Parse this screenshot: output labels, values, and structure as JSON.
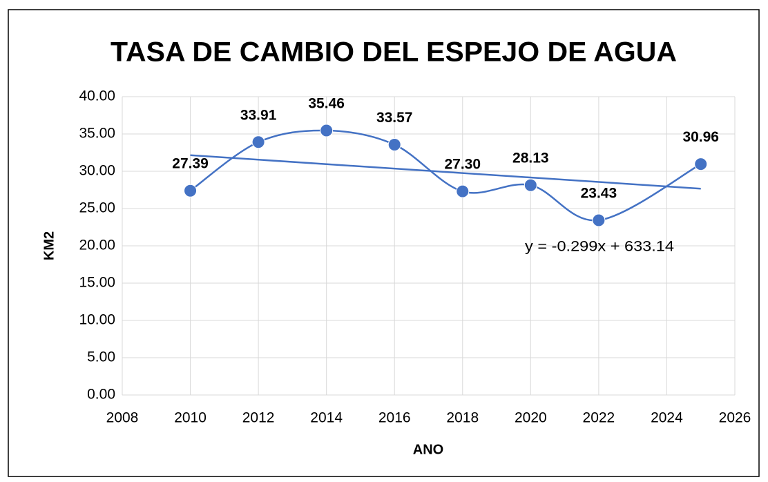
{
  "chart_data": {
    "type": "scatter",
    "title": "TASA DE CAMBIO DEL ESPEJO DE AGUA",
    "x_label": "ANO",
    "y_label": "KM2",
    "x": [
      2010,
      2012,
      2014,
      2016,
      2018,
      2020,
      2022,
      2025
    ],
    "series": [
      {
        "name": "KM2",
        "color": "#4472c4",
        "values": [
          27.39,
          33.91,
          35.46,
          33.57,
          27.3,
          28.13,
          23.43,
          30.96
        ],
        "value_labels": [
          "27.39",
          "33.91",
          "35.46",
          "33.57",
          "27.30",
          "28.13",
          "23.43",
          "30.96"
        ]
      }
    ],
    "smooth": true,
    "trendline": {
      "slope": -0.299,
      "intercept": 633.14,
      "label": "y = -0.299x + 633.14"
    },
    "xlim": [
      2008,
      2026
    ],
    "xticks": [
      2008,
      2010,
      2012,
      2014,
      2016,
      2018,
      2020,
      2022,
      2024,
      2026
    ],
    "ylim": [
      0,
      40
    ],
    "yticks": [
      {
        "value": 0,
        "label": "0.00"
      },
      {
        "value": 5,
        "label": "5.00"
      },
      {
        "value": 10,
        "label": "10.00"
      },
      {
        "value": 15,
        "label": "15.00"
      },
      {
        "value": 20,
        "label": "20.00"
      },
      {
        "value": 25,
        "label": "25.00"
      },
      {
        "value": 30,
        "label": "30.00"
      },
      {
        "value": 35,
        "label": "35.00"
      },
      {
        "value": 40,
        "label": "40.00"
      }
    ],
    "grid": true
  }
}
